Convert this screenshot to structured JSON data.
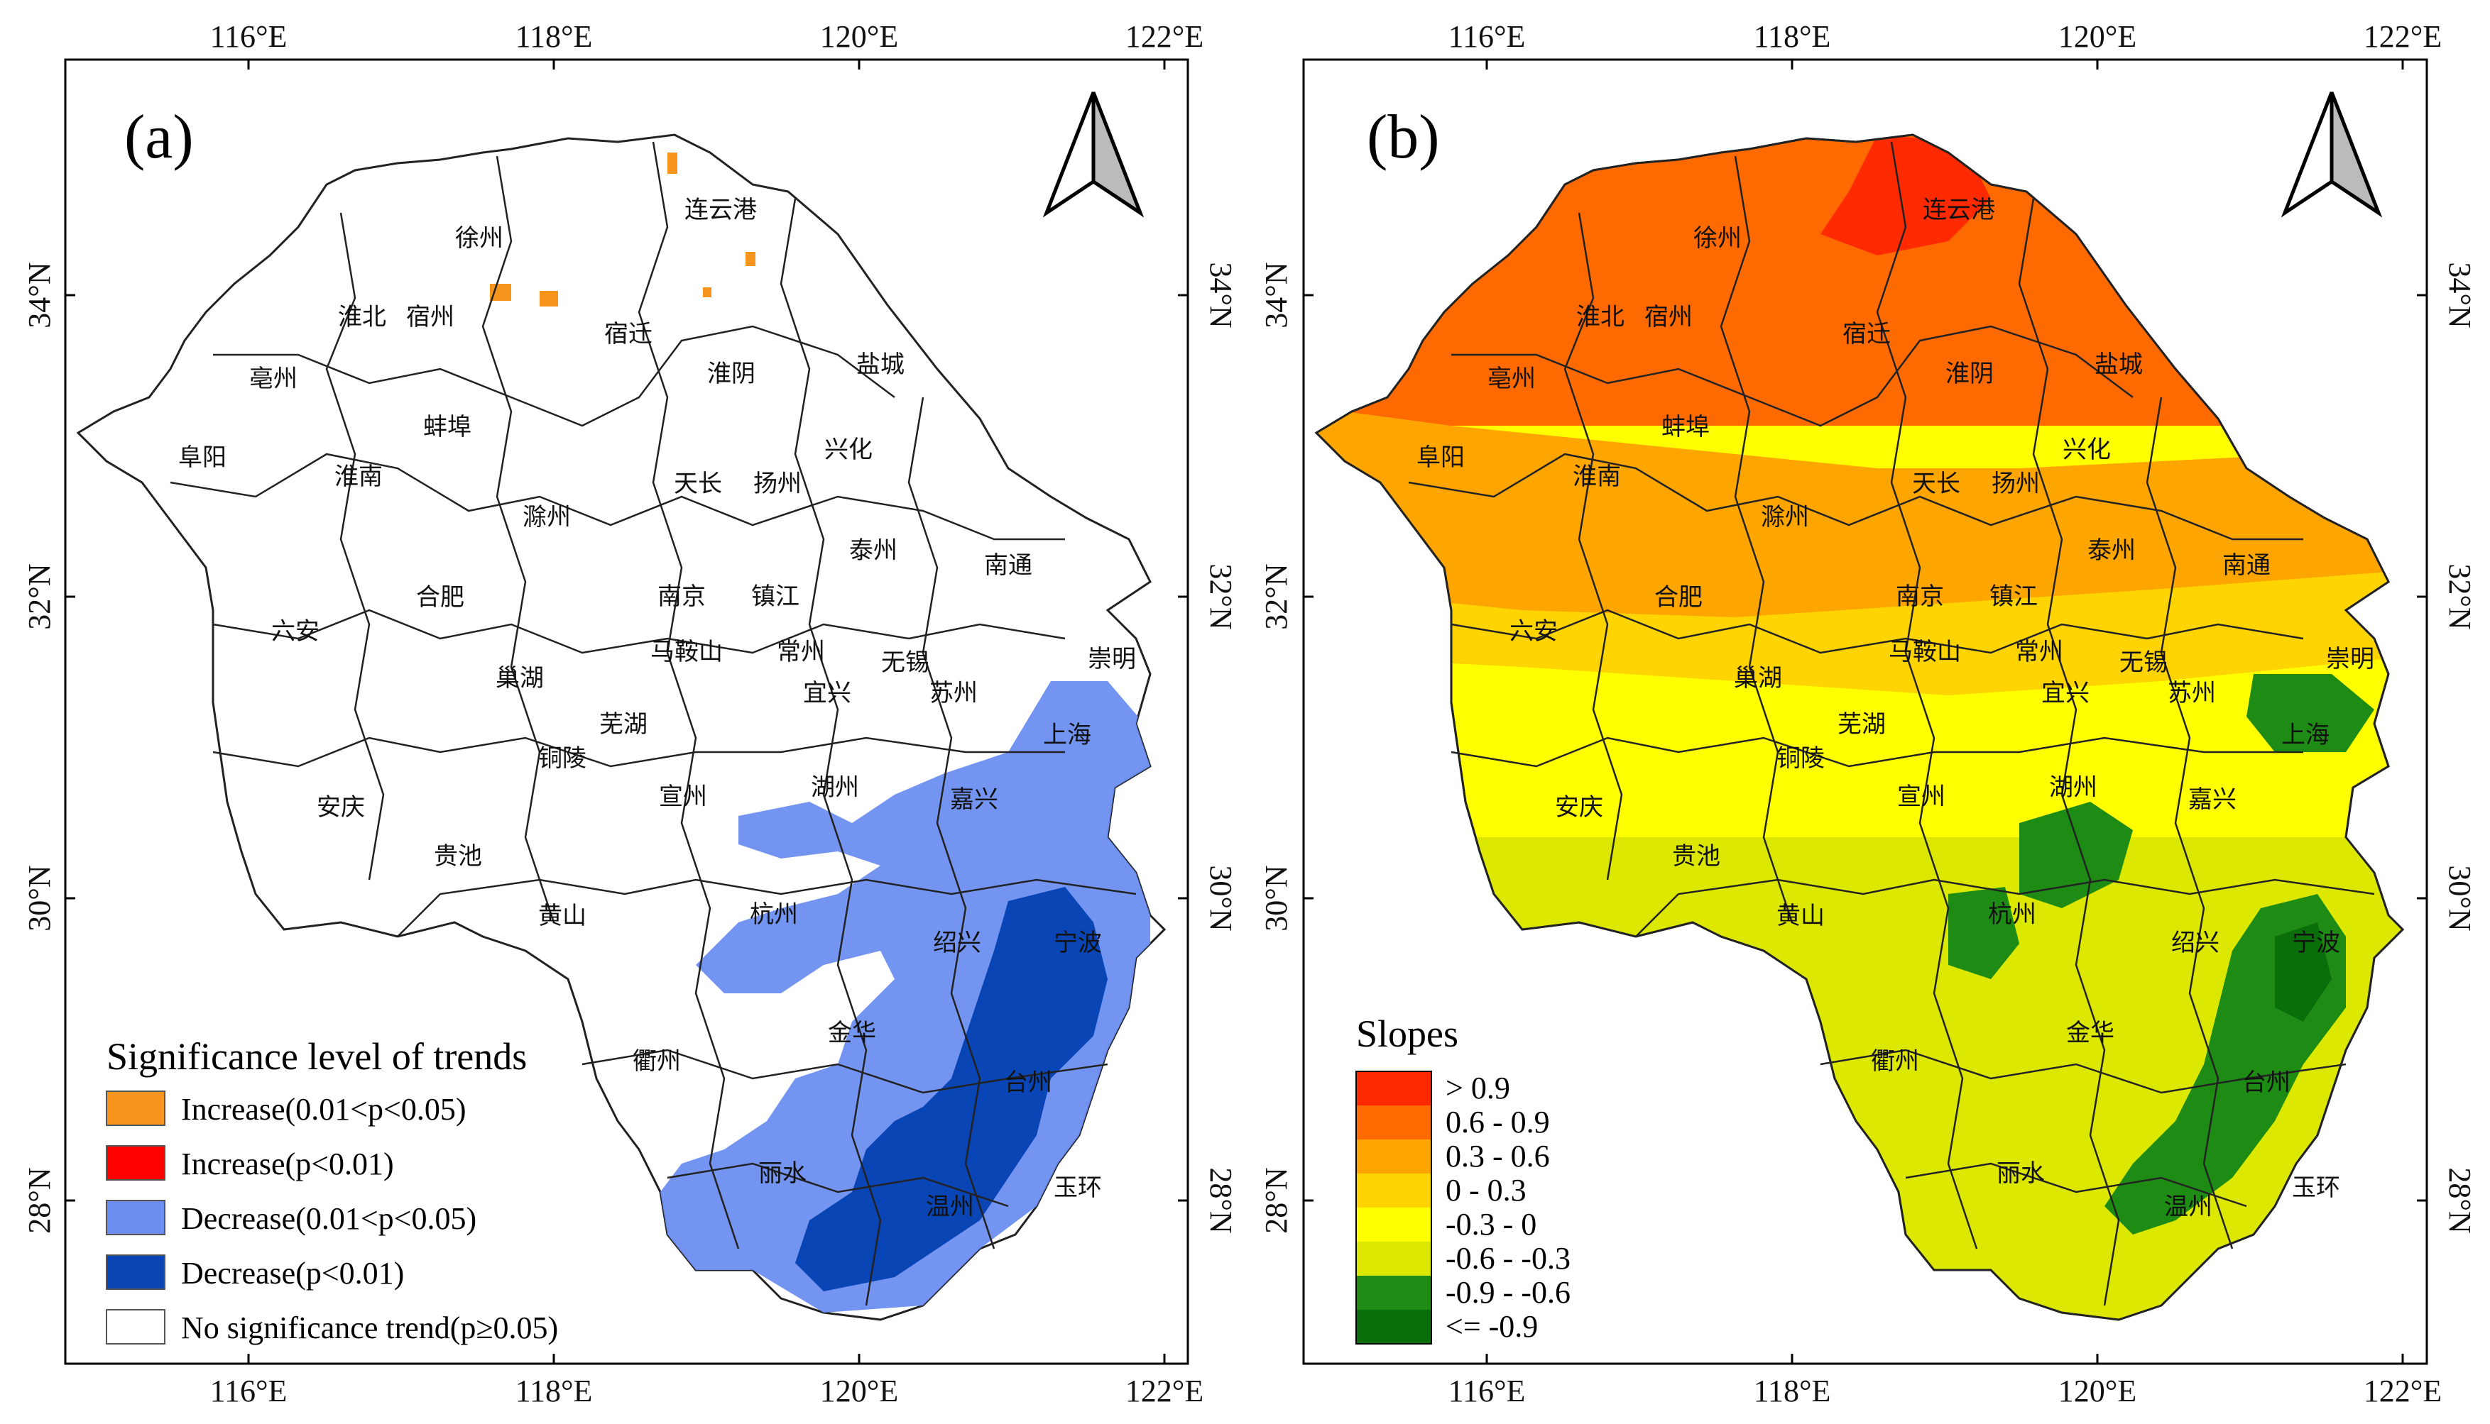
{
  "panels": [
    {
      "label": "(a)",
      "legend_title": "Significance level of trends",
      "legend_items": [
        {
          "label": "Increase(0.01<p<0.05)",
          "color": "#f7941d"
        },
        {
          "label": "Increase(p<0.01)",
          "color": "#ff0000"
        },
        {
          "label": "Decrease(0.01<p<0.05)",
          "color": "#6b8ef0"
        },
        {
          "label": "Decrease(p<0.01)",
          "color": "#0a45b5"
        },
        {
          "label": "No significance trend(p≥0.05)",
          "color": "#ffffff"
        }
      ]
    },
    {
      "label": "(b)",
      "legend_title": "Slopes",
      "legend_items": [
        {
          "label": "> 0.9",
          "color": "#ff2a00"
        },
        {
          "label": "0.6 - 0.9",
          "color": "#ff6a00"
        },
        {
          "label": "0.3 - 0.6",
          "color": "#ffa500"
        },
        {
          "label": "0 - 0.3",
          "color": "#ffd400"
        },
        {
          "label": "-0.3 - 0",
          "color": "#ffff00"
        },
        {
          "label": "-0.6 - -0.3",
          "color": "#dde800"
        },
        {
          "label": "-0.9 - -0.6",
          "color": "#1e8c14"
        },
        {
          "label": "<= -0.9",
          "color": "#0a6e0a"
        }
      ]
    }
  ],
  "axes": {
    "lon_ticks": [
      "116°E",
      "118°E",
      "120°E",
      "122°E"
    ],
    "lat_ticks": [
      "34°N",
      "32°N",
      "30°N",
      "28°N"
    ]
  },
  "cities": [
    "连云港",
    "徐州",
    "淮北",
    "宿州",
    "宿迁",
    "淮阴",
    "盐城",
    "亳州",
    "蚌埠",
    "阜阳",
    "淮南",
    "兴化",
    "天长",
    "扬州",
    "滁州",
    "泰州",
    "南通",
    "南京",
    "镇江",
    "合肥",
    "六安",
    "马鞍山",
    "常州",
    "无锡",
    "崇明",
    "巢湖",
    "宜兴",
    "苏州",
    "芜湖",
    "上海",
    "铜陵",
    "宣州",
    "湖州",
    "嘉兴",
    "安庆",
    "贵池",
    "黄山",
    "杭州",
    "绍兴",
    "宁波",
    "金华",
    "衢州",
    "台州",
    "丽水",
    "温州",
    "玉环"
  ]
}
